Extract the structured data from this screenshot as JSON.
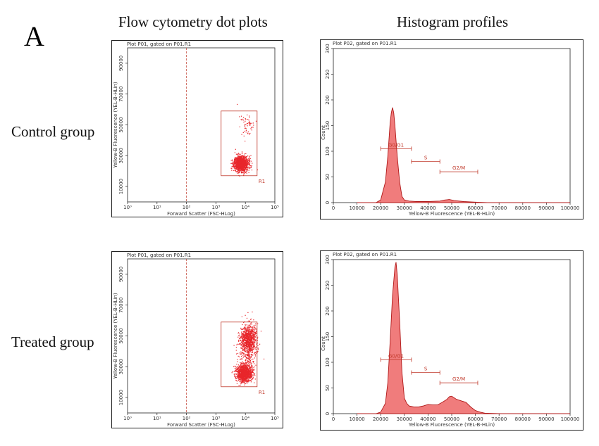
{
  "figure": {
    "panel_letter": "A",
    "column_headers": [
      "Flow cytometry dot plots",
      "Histogram profiles"
    ],
    "row_headers": [
      "Control group",
      "Treated group"
    ]
  },
  "colors": {
    "events": "#e8262b",
    "histogram_fill": "#f07c7c",
    "histogram_stroke": "#b01818",
    "gate": "#c0392b",
    "frame": "#222222"
  },
  "chart_data": [
    {
      "type": "scatter",
      "title": "Plot P01, gated on P01.R1",
      "xlabel": "Forward Scatter (FSC-HLog)",
      "ylabel": "Yellow-B Fluorescence (YEL-B-HLin)",
      "x_scale": "log",
      "xlim": [
        1,
        100000
      ],
      "ylim": [
        0,
        100000
      ],
      "xticks": [
        "10⁰",
        "10¹",
        "10²",
        "10³",
        "10⁴",
        "10⁵"
      ],
      "yticks": [
        "10000",
        "30000",
        "50000",
        "70000",
        "90000"
      ],
      "threshold_x": 100,
      "gate": {
        "label": "R1",
        "x": [
          1500,
          25000
        ],
        "y": [
          17000,
          59000
        ]
      },
      "populations": [
        {
          "x_center": 7000,
          "y_center": 25000,
          "n": 1400,
          "x_spread": 0.12,
          "y_spread": 2500
        },
        {
          "x_center": 12000,
          "y_center": 50000,
          "n": 60,
          "x_spread": 0.12,
          "y_spread": 4000
        }
      ]
    },
    {
      "type": "area",
      "title": "Plot P02, gated on P01.R1",
      "xlabel": "Yellow-B Fluorescence (YEL-B-HLin)",
      "ylabel": "Count",
      "xlim": [
        0,
        100000
      ],
      "ylim": [
        0,
        300
      ],
      "xticks": [
        "0",
        "10000",
        "20000",
        "30000",
        "40000",
        "50000",
        "60000",
        "70000",
        "80000",
        "90000",
        "100000"
      ],
      "yticks": [
        "0",
        "50",
        "100",
        "150",
        "200",
        "250",
        "300"
      ],
      "gates": [
        {
          "label": "G0/G1",
          "x": [
            20000,
            33000
          ],
          "y": 105
        },
        {
          "label": "S",
          "x": [
            33000,
            45000
          ],
          "y": 80
        },
        {
          "label": "G2/M",
          "x": [
            45000,
            61000
          ],
          "y": 60
        }
      ],
      "x": [
        10000,
        18000,
        20000,
        22000,
        23000,
        24000,
        24500,
        25000,
        25500,
        26000,
        27000,
        28000,
        29000,
        30000,
        32000,
        35000,
        40000,
        45000,
        47000,
        49000,
        51000,
        55000,
        60000,
        65000,
        70000,
        100000
      ],
      "y": [
        0,
        0,
        5,
        40,
        90,
        155,
        175,
        185,
        175,
        150,
        90,
        40,
        12,
        5,
        3,
        2,
        2,
        3,
        5,
        6,
        4,
        2,
        1,
        0,
        0,
        0
      ]
    },
    {
      "type": "scatter",
      "title": "Plot P01, gated on P01.R1",
      "xlabel": "Forward Scatter (FSC-HLog)",
      "ylabel": "Yellow-B Fluorescence (YEL-B-HLin)",
      "x_scale": "log",
      "xlim": [
        1,
        100000
      ],
      "ylim": [
        0,
        100000
      ],
      "xticks": [
        "10⁰",
        "10¹",
        "10²",
        "10³",
        "10⁴",
        "10⁵"
      ],
      "yticks": [
        "10000",
        "30000",
        "50000",
        "70000",
        "90000"
      ],
      "threshold_x": 100,
      "gate": {
        "label": "R1",
        "x": [
          1500,
          25000
        ],
        "y": [
          17000,
          59000
        ]
      },
      "populations": [
        {
          "x_center": 9000,
          "y_center": 26000,
          "n": 1300,
          "x_spread": 0.13,
          "y_spread": 2700
        },
        {
          "x_center": 12000,
          "y_center": 48000,
          "n": 900,
          "x_spread": 0.13,
          "y_spread": 4500
        },
        {
          "x_center": 11000,
          "y_center": 37000,
          "n": 180,
          "x_spread": 0.15,
          "y_spread": 5000
        }
      ]
    },
    {
      "type": "area",
      "title": "Plot P02, gated on P01.R1",
      "xlabel": "Yellow-B Fluorescence (YEL-B-HLin)",
      "ylabel": "Count",
      "xlim": [
        0,
        100000
      ],
      "ylim": [
        0,
        300
      ],
      "xticks": [
        "0",
        "10000",
        "20000",
        "30000",
        "40000",
        "50000",
        "60000",
        "70000",
        "80000",
        "90000",
        "100000"
      ],
      "yticks": [
        "0",
        "50",
        "100",
        "150",
        "200",
        "250",
        "300"
      ],
      "gates": [
        {
          "label": "G0/G1",
          "x": [
            20000,
            33000
          ],
          "y": 105
        },
        {
          "label": "S",
          "x": [
            33000,
            45000
          ],
          "y": 80
        },
        {
          "label": "G2/M",
          "x": [
            45000,
            61000
          ],
          "y": 60
        }
      ],
      "x": [
        10000,
        18000,
        20000,
        22000,
        23000,
        24000,
        25000,
        26000,
        26500,
        27000,
        28000,
        29000,
        30000,
        31000,
        32000,
        34000,
        36000,
        38000,
        40000,
        42000,
        44000,
        46000,
        48000,
        49000,
        50000,
        52000,
        54000,
        56000,
        58000,
        60000,
        62000,
        64000,
        70000,
        100000
      ],
      "y": [
        0,
        0,
        3,
        20,
        60,
        140,
        230,
        285,
        295,
        270,
        180,
        80,
        30,
        20,
        15,
        13,
        13,
        15,
        18,
        17,
        17,
        22,
        28,
        33,
        34,
        28,
        25,
        22,
        13,
        6,
        3,
        1,
        0,
        0
      ]
    }
  ]
}
